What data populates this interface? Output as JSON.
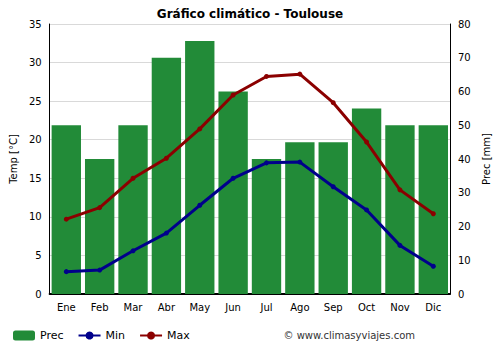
{
  "chart_data": {
    "type": "bar",
    "title": "Gráfico climático - Toulouse",
    "ylabel": "Temp [°C]",
    "y2label": "Prec [mm]",
    "annotation": "© www.climasyviajes.com",
    "categories": [
      "Ene",
      "Feb",
      "Mar",
      "Abr",
      "May",
      "Jun",
      "Jul",
      "Ago",
      "Sep",
      "Oct",
      "Nov",
      "Dic"
    ],
    "series": [
      {
        "name": "Prec",
        "type": "bar",
        "axis": "y2",
        "color": "#228b38",
        "values": [
          50,
          40,
          50,
          70,
          75,
          60,
          40,
          45,
          45,
          55,
          50,
          50
        ]
      },
      {
        "name": "Min",
        "type": "line",
        "color": "#00008b",
        "marker": "circle",
        "line_style": "solid",
        "values": [
          2.9,
          3.1,
          5.6,
          7.9,
          11.5,
          15.0,
          17.0,
          17.1,
          13.9,
          10.9,
          6.3,
          3.6
        ]
      },
      {
        "name": "Max",
        "type": "line",
        "color": "#8b0000",
        "marker": "circle",
        "line_style": "solid",
        "values": [
          9.7,
          11.2,
          15.0,
          17.6,
          21.4,
          25.8,
          28.2,
          28.5,
          24.8,
          19.7,
          13.5,
          10.4
        ]
      }
    ],
    "ylim": [
      0,
      35
    ],
    "yticks": [
      0,
      5,
      10,
      15,
      20,
      25,
      30,
      35
    ],
    "y2lim": [
      0,
      80
    ],
    "y2ticks": [
      0,
      10,
      20,
      30,
      40,
      50,
      60,
      70,
      80
    ],
    "grid": true,
    "legend": "bottom"
  }
}
